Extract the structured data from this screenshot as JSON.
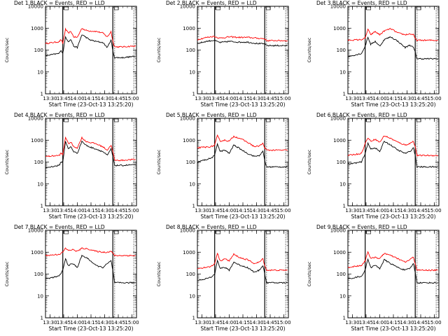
{
  "figure": {
    "start_time_label": "Start Time (23-Oct-13 13:25:20)",
    "ylabel": "Counts/sec",
    "title_suffix": "BLACK = Events, RED = LLD"
  },
  "chart_data": [
    {
      "type": "line",
      "title": "Det 1",
      "xticks": [
        "13:30",
        "13:45",
        "14:00",
        "14:15",
        "14:30",
        "14:45",
        "15:00"
      ],
      "yticks": [
        "1",
        "10",
        "100",
        "1000",
        "10000"
      ],
      "xlim": [
        "13:25",
        "15:05"
      ],
      "ylim": [
        1,
        10000
      ],
      "ylog": true,
      "markers_solid": [
        "13:44",
        "14:39"
      ],
      "markers_dotted": [
        "14:41",
        "15:02"
      ],
      "series": [
        {
          "name": "LLD",
          "color": "#ff0000",
          "x": [
            "13:25",
            "13:40",
            "13:42",
            "13:44",
            "13:47",
            "13:50",
            "13:53",
            "13:56",
            "14:00",
            "14:05",
            "14:09",
            "14:13",
            "14:20",
            "14:28",
            "14:33",
            "14:37",
            "14:39",
            "14:41",
            "14:50",
            "15:00",
            "15:04"
          ],
          "values": [
            200,
            240,
            300,
            200,
            900,
            600,
            700,
            400,
            380,
            1000,
            800,
            750,
            720,
            600,
            400,
            700,
            250,
            140,
            140,
            150,
            150
          ]
        },
        {
          "name": "Events",
          "color": "#000000",
          "x": [
            "13:25",
            "13:40",
            "13:42",
            "13:44",
            "13:47",
            "13:50",
            "13:53",
            "13:56",
            "14:00",
            "14:05",
            "14:09",
            "14:13",
            "14:20",
            "14:28",
            "14:33",
            "14:37",
            "14:39",
            "14:41",
            "14:50",
            "15:00",
            "15:04"
          ],
          "values": [
            55,
            70,
            100,
            70,
            400,
            250,
            300,
            150,
            130,
            500,
            400,
            300,
            250,
            220,
            130,
            300,
            90,
            45,
            45,
            50,
            50
          ]
        }
      ]
    },
    {
      "type": "line",
      "title": "Det 2",
      "xticks": [
        "13:30",
        "13:45",
        "14:00",
        "14:15",
        "14:30",
        "14:45",
        "15:00"
      ],
      "yticks": [
        "1",
        "10",
        "100",
        "1000",
        "10000"
      ],
      "xlim": [
        "13:25",
        "15:05"
      ],
      "ylim": [
        1,
        10000
      ],
      "ylog": true,
      "markers_solid": [
        "13:44",
        "14:39"
      ],
      "markers_dotted": [
        "14:41",
        "15:02"
      ],
      "series": [
        {
          "name": "LLD",
          "color": "#ff0000",
          "x": [
            "13:25",
            "13:35",
            "13:43",
            "13:50",
            "14:00",
            "14:10",
            "14:20",
            "14:30",
            "14:39",
            "14:41",
            "15:04"
          ],
          "values": [
            300,
            380,
            420,
            350,
            400,
            380,
            380,
            350,
            330,
            270,
            270
          ]
        },
        {
          "name": "Events",
          "color": "#000000",
          "x": [
            "13:25",
            "13:35",
            "13:43",
            "13:50",
            "14:00",
            "14:10",
            "14:20",
            "14:30",
            "14:39",
            "14:41",
            "15:04"
          ],
          "values": [
            200,
            250,
            280,
            220,
            250,
            230,
            230,
            200,
            190,
            160,
            160
          ]
        }
      ]
    },
    {
      "type": "line",
      "title": "Det 3",
      "xticks": [
        "13:30",
        "13:45",
        "14:00",
        "14:15",
        "14:30",
        "14:45",
        "15:00"
      ],
      "yticks": [
        "1",
        "10",
        "100",
        "1000",
        "10000"
      ],
      "xlim": [
        "13:25",
        "15:05"
      ],
      "ylim": [
        1,
        10000
      ],
      "ylog": true,
      "markers_solid": [
        "13:44",
        "14:39"
      ],
      "markers_dotted": [
        "14:41",
        "15:02"
      ],
      "series": [
        {
          "name": "LLD",
          "color": "#ff0000",
          "x": [
            "13:25",
            "13:40",
            "13:44",
            "13:47",
            "13:50",
            "13:55",
            "14:00",
            "14:05",
            "14:12",
            "14:20",
            "14:28",
            "14:33",
            "14:37",
            "14:39",
            "14:41",
            "15:04"
          ],
          "values": [
            280,
            300,
            350,
            900,
            500,
            700,
            500,
            750,
            950,
            600,
            500,
            550,
            500,
            330,
            280,
            280
          ]
        },
        {
          "name": "Events",
          "color": "#000000",
          "x": [
            "13:25",
            "13:40",
            "13:44",
            "13:47",
            "13:50",
            "13:55",
            "14:00",
            "14:05",
            "14:12",
            "14:20",
            "14:28",
            "14:33",
            "14:37",
            "14:39",
            "14:41",
            "15:04"
          ],
          "values": [
            50,
            70,
            150,
            400,
            180,
            250,
            150,
            300,
            400,
            250,
            130,
            170,
            130,
            80,
            40,
            40
          ]
        }
      ]
    },
    {
      "type": "line",
      "title": "Det 4",
      "xticks": [
        "13:30",
        "13:45",
        "14:00",
        "14:15",
        "14:30",
        "14:45",
        "15:00"
      ],
      "yticks": [
        "1",
        "10",
        "100",
        "1000",
        "10000"
      ],
      "xlim": [
        "13:25",
        "15:05"
      ],
      "ylim": [
        1,
        10000
      ],
      "ylog": true,
      "markers_solid": [
        "13:44",
        "14:39"
      ],
      "markers_dotted": [
        "14:41",
        "15:02"
      ],
      "series": [
        {
          "name": "LLD",
          "color": "#ff0000",
          "x": [
            "13:25",
            "13:40",
            "13:42",
            "13:44",
            "13:47",
            "13:50",
            "13:53",
            "13:56",
            "14:00",
            "14:05",
            "14:09",
            "14:13",
            "14:20",
            "14:28",
            "14:33",
            "14:37",
            "14:39",
            "14:41",
            "14:50",
            "15:00",
            "15:04"
          ],
          "values": [
            180,
            200,
            250,
            220,
            1400,
            700,
            800,
            500,
            450,
            1300,
            900,
            800,
            700,
            500,
            350,
            600,
            300,
            120,
            120,
            130,
            130
          ]
        },
        {
          "name": "Events",
          "color": "#000000",
          "x": [
            "13:25",
            "13:40",
            "13:42",
            "13:44",
            "13:47",
            "13:50",
            "13:53",
            "13:56",
            "14:00",
            "14:05",
            "14:09",
            "14:13",
            "14:20",
            "14:28",
            "14:33",
            "14:37",
            "14:39",
            "14:41",
            "14:50",
            "15:00",
            "15:04"
          ],
          "values": [
            55,
            70,
            100,
            100,
            900,
            400,
            500,
            300,
            250,
            900,
            600,
            500,
            400,
            300,
            200,
            400,
            180,
            70,
            70,
            75,
            75
          ]
        }
      ]
    },
    {
      "type": "line",
      "title": "Det 5",
      "xticks": [
        "13:30",
        "13:45",
        "14:00",
        "14:15",
        "14:30",
        "14:45",
        "15:00"
      ],
      "yticks": [
        "1",
        "10",
        "100",
        "1000",
        "10000"
      ],
      "xlim": [
        "13:25",
        "15:05"
      ],
      "ylim": [
        1,
        10000
      ],
      "ylog": true,
      "markers_solid": [
        "13:44",
        "14:39"
      ],
      "markers_dotted": [
        "14:41",
        "15:02"
      ],
      "series": [
        {
          "name": "LLD",
          "color": "#ff0000",
          "x": [
            "13:25",
            "13:40",
            "13:44",
            "13:47",
            "13:50",
            "13:55",
            "14:00",
            "14:05",
            "14:12",
            "14:20",
            "14:28",
            "14:33",
            "14:37",
            "14:39",
            "14:41",
            "15:04"
          ],
          "values": [
            450,
            500,
            600,
            1600,
            900,
            1000,
            900,
            1500,
            1200,
            800,
            500,
            550,
            700,
            450,
            350,
            350
          ]
        },
        {
          "name": "Events",
          "color": "#000000",
          "x": [
            "13:25",
            "13:40",
            "13:44",
            "13:47",
            "13:50",
            "13:55",
            "14:00",
            "14:05",
            "14:12",
            "14:20",
            "14:28",
            "14:33",
            "14:37",
            "14:39",
            "14:41",
            "15:04"
          ],
          "values": [
            100,
            150,
            200,
            700,
            300,
            350,
            250,
            600,
            400,
            250,
            180,
            200,
            300,
            120,
            60,
            60
          ]
        }
      ]
    },
    {
      "type": "line",
      "title": "Det 6",
      "xticks": [
        "13:30",
        "13:45",
        "14:00",
        "14:15",
        "14:30",
        "14:45",
        "15:00"
      ],
      "yticks": [
        "1",
        "10",
        "100",
        "1000",
        "10000"
      ],
      "xlim": [
        "13:25",
        "15:05"
      ],
      "ylim": [
        1,
        10000
      ],
      "ylog": true,
      "markers_solid": [
        "13:44",
        "14:39"
      ],
      "markers_dotted": [
        "14:41",
        "15:02"
      ],
      "series": [
        {
          "name": "LLD",
          "color": "#ff0000",
          "x": [
            "13:25",
            "13:40",
            "13:44",
            "13:47",
            "13:50",
            "13:55",
            "14:00",
            "14:05",
            "14:12",
            "14:20",
            "14:28",
            "14:33",
            "14:37",
            "14:39",
            "14:41",
            "15:04"
          ],
          "values": [
            200,
            250,
            700,
            1300,
            900,
            1100,
            800,
            1600,
            1200,
            800,
            600,
            700,
            900,
            500,
            200,
            200
          ]
        },
        {
          "name": "Events",
          "color": "#000000",
          "x": [
            "13:25",
            "13:40",
            "13:44",
            "13:47",
            "13:50",
            "13:55",
            "14:00",
            "14:05",
            "14:12",
            "14:20",
            "14:28",
            "14:33",
            "14:37",
            "14:39",
            "14:41",
            "15:04"
          ],
          "values": [
            80,
            100,
            250,
            700,
            400,
            450,
            300,
            900,
            600,
            350,
            250,
            300,
            450,
            200,
            60,
            60
          ]
        }
      ]
    },
    {
      "type": "line",
      "title": "Det 7",
      "xticks": [
        "13:30",
        "13:45",
        "14:00",
        "14:15",
        "14:30",
        "14:45",
        "15:00"
      ],
      "yticks": [
        "1",
        "10",
        "100",
        "1000",
        "10000"
      ],
      "xlim": [
        "13:25",
        "15:05"
      ],
      "ylim": [
        1,
        10000
      ],
      "ylog": true,
      "markers_solid": [
        "13:44",
        "14:39"
      ],
      "markers_dotted": [
        "14:41",
        "15:02"
      ],
      "series": [
        {
          "name": "LLD",
          "color": "#ff0000",
          "x": [
            "13:25",
            "13:40",
            "13:44",
            "13:47",
            "13:50",
            "13:55",
            "14:00",
            "14:05",
            "14:12",
            "14:20",
            "14:28",
            "14:33",
            "14:37",
            "14:39",
            "14:41",
            "15:04"
          ],
          "values": [
            700,
            800,
            1000,
            1500,
            1200,
            1300,
            1100,
            1500,
            1400,
            1100,
            1000,
            1000,
            1100,
            900,
            700,
            700
          ]
        },
        {
          "name": "Events",
          "color": "#000000",
          "x": [
            "13:25",
            "13:40",
            "13:44",
            "13:47",
            "13:50",
            "13:55",
            "14:00",
            "14:05",
            "14:12",
            "14:20",
            "14:28",
            "14:33",
            "14:37",
            "14:39",
            "14:41",
            "15:04"
          ],
          "values": [
            60,
            80,
            150,
            500,
            250,
            300,
            200,
            700,
            500,
            250,
            200,
            300,
            400,
            150,
            40,
            40
          ]
        }
      ]
    },
    {
      "type": "line",
      "title": "Det 8",
      "xticks": [
        "13:30",
        "13:45",
        "14:00",
        "14:15",
        "14:30",
        "14:45",
        "15:00"
      ],
      "yticks": [
        "1",
        "10",
        "100",
        "1000",
        "10000"
      ],
      "xlim": [
        "13:25",
        "15:05"
      ],
      "ylim": [
        1,
        10000
      ],
      "ylog": true,
      "markers_solid": [
        "13:44",
        "14:39"
      ],
      "markers_dotted": [
        "14:41",
        "15:02"
      ],
      "series": [
        {
          "name": "LLD",
          "color": "#ff0000",
          "x": [
            "13:25",
            "13:40",
            "13:44",
            "13:47",
            "13:50",
            "13:55",
            "14:00",
            "14:05",
            "14:12",
            "14:20",
            "14:28",
            "14:33",
            "14:37",
            "14:39",
            "14:41",
            "15:04"
          ],
          "values": [
            180,
            220,
            300,
            900,
            400,
            500,
            400,
            800,
            550,
            450,
            300,
            350,
            500,
            250,
            150,
            150
          ]
        },
        {
          "name": "Events",
          "color": "#000000",
          "x": [
            "13:25",
            "13:40",
            "13:44",
            "13:47",
            "13:50",
            "13:55",
            "14:00",
            "14:05",
            "14:12",
            "14:20",
            "14:28",
            "14:33",
            "14:37",
            "14:39",
            "14:41",
            "15:04"
          ],
          "values": [
            50,
            70,
            100,
            450,
            180,
            200,
            150,
            350,
            250,
            200,
            120,
            150,
            250,
            100,
            40,
            40
          ]
        }
      ]
    },
    {
      "type": "line",
      "title": "Det 9",
      "xticks": [
        "13:30",
        "13:45",
        "14:00",
        "14:15",
        "14:30",
        "14:45",
        "15:00"
      ],
      "yticks": [
        "1",
        "10",
        "100",
        "1000",
        "10000"
      ],
      "xlim": [
        "13:25",
        "15:05"
      ],
      "ylim": [
        1,
        10000
      ],
      "ylog": true,
      "markers_solid": [
        "13:44",
        "14:39"
      ],
      "markers_dotted": [
        "14:41",
        "15:02"
      ],
      "series": [
        {
          "name": "LLD",
          "color": "#ff0000",
          "x": [
            "13:25",
            "13:40",
            "13:44",
            "13:47",
            "13:50",
            "13:55",
            "14:00",
            "14:05",
            "14:12",
            "14:20",
            "14:28",
            "14:33",
            "14:37",
            "14:39",
            "14:41",
            "15:04"
          ],
          "values": [
            200,
            250,
            400,
            1100,
            500,
            600,
            500,
            900,
            700,
            500,
            350,
            450,
            600,
            300,
            150,
            150
          ]
        },
        {
          "name": "Events",
          "color": "#000000",
          "x": [
            "13:25",
            "13:40",
            "13:44",
            "13:47",
            "13:50",
            "13:55",
            "14:00",
            "14:05",
            "14:12",
            "14:20",
            "14:28",
            "14:33",
            "14:37",
            "14:39",
            "14:41",
            "15:04"
          ],
          "values": [
            60,
            80,
            150,
            500,
            200,
            250,
            180,
            450,
            300,
            200,
            150,
            180,
            300,
            120,
            40,
            40
          ]
        }
      ]
    }
  ]
}
